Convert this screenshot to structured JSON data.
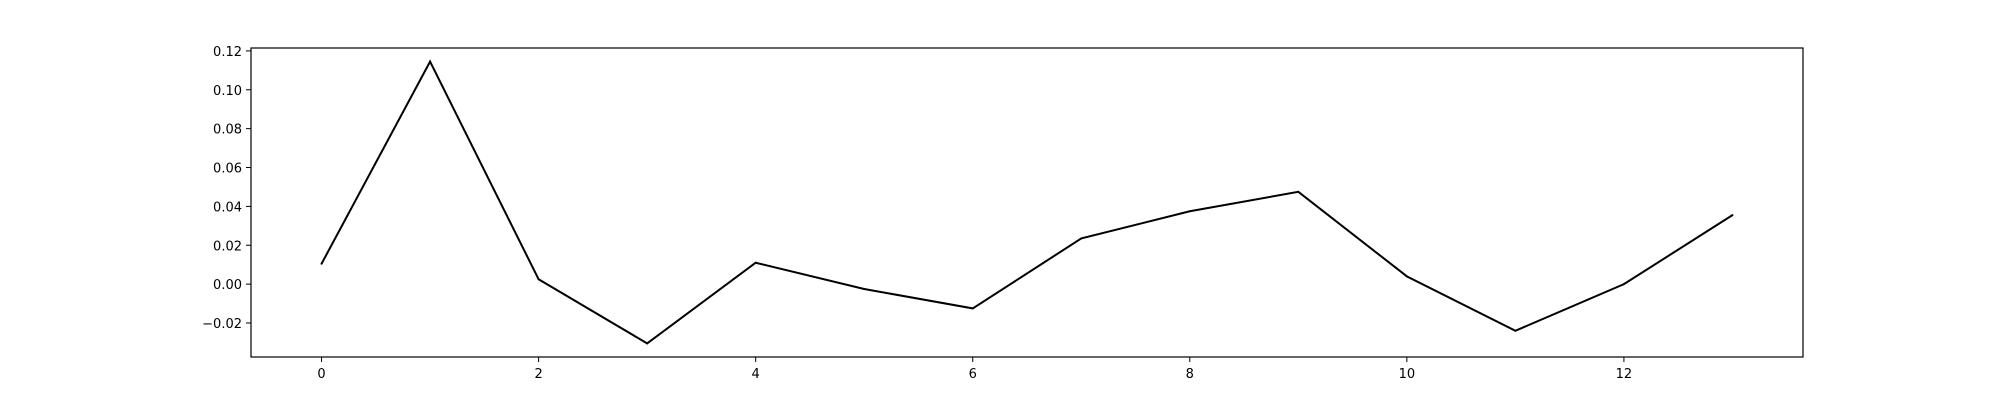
{
  "chart_data": {
    "type": "line",
    "title": "",
    "xlabel": "",
    "ylabel": "",
    "x": [
      0,
      1,
      2,
      3,
      4,
      5,
      6,
      7,
      8,
      9,
      10,
      11,
      12,
      13
    ],
    "series": [
      {
        "values": [
          0.0105,
          0.1145,
          0.0025,
          -0.0305,
          0.011,
          -0.0025,
          -0.0125,
          0.0235,
          0.0375,
          0.0475,
          0.004,
          -0.024,
          0.0,
          0.0355
        ],
        "color": "#000000"
      }
    ],
    "xlim": [
      -0.65,
      13.65
    ],
    "ylim": [
      -0.0375,
      0.1215
    ],
    "xticks": [
      0,
      2,
      4,
      6,
      8,
      10,
      12
    ],
    "xtick_labels": [
      "0",
      "2",
      "4",
      "6",
      "8",
      "10",
      "12"
    ],
    "yticks": [
      -0.02,
      0.0,
      0.02,
      0.04,
      0.06,
      0.08,
      0.1,
      0.12
    ],
    "ytick_labels": [
      "−0.02",
      "0.00",
      "0.02",
      "0.04",
      "0.06",
      "0.08",
      "0.10",
      "0.12"
    ],
    "grid": false,
    "legend": false
  }
}
